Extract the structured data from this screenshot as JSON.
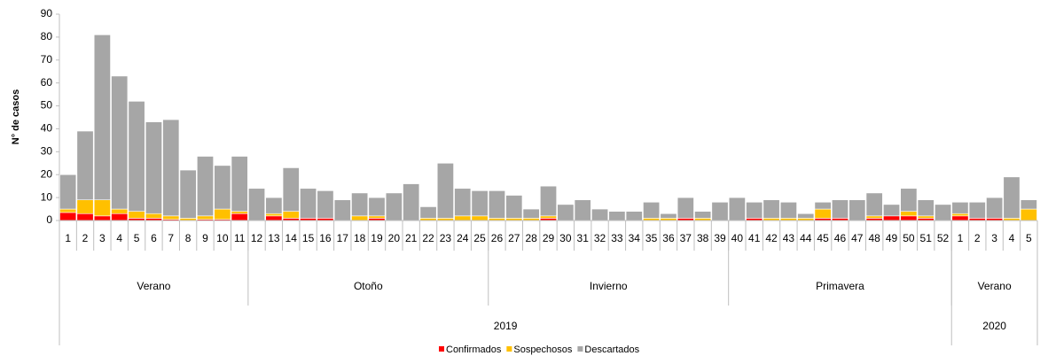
{
  "chart_data": {
    "type": "stacked_bar",
    "y_label": "N° de casos",
    "categories": [
      "1",
      "2",
      "3",
      "4",
      "5",
      "6",
      "7",
      "8",
      "9",
      "10",
      "11",
      "12",
      "13",
      "14",
      "15",
      "16",
      "17",
      "18",
      "19",
      "20",
      "21",
      "22",
      "23",
      "24",
      "25",
      "26",
      "27",
      "28",
      "29",
      "30",
      "31",
      "32",
      "33",
      "34",
      "35",
      "36",
      "37",
      "38",
      "39",
      "40",
      "41",
      "42",
      "43",
      "44",
      "45",
      "46",
      "47",
      "48",
      "49",
      "50",
      "51",
      "52",
      "1",
      "2",
      "3",
      "4",
      "5"
    ],
    "season_groups": [
      {
        "label": "Verano",
        "span": 11
      },
      {
        "label": "Otoño",
        "span": 14
      },
      {
        "label": "Invierno",
        "span": 14
      },
      {
        "label": "Primavera",
        "span": 13
      },
      {
        "label": "Verano",
        "span": 5
      }
    ],
    "year_groups": [
      {
        "label": "2019",
        "span": 52
      },
      {
        "label": "2020",
        "span": 5
      }
    ],
    "series": [
      {
        "name": "Confirmados",
        "color": "#ff0000",
        "values": [
          3.5,
          3,
          2,
          3,
          1,
          1,
          0.5,
          0,
          0.5,
          0.5,
          3,
          0,
          2,
          1,
          1,
          1,
          0,
          0,
          1,
          0,
          0,
          0,
          0,
          0,
          0,
          0,
          0,
          0,
          1,
          0,
          0,
          0,
          0,
          0,
          0,
          0,
          1,
          0,
          0,
          0,
          1,
          0,
          0,
          0,
          1,
          1,
          0,
          1,
          2,
          2,
          1,
          0,
          2,
          1,
          1,
          0,
          0
        ]
      },
      {
        "name": "Sospechosos",
        "color": "#ffc000",
        "values": [
          1.5,
          6,
          7,
          2,
          3,
          2,
          1.5,
          1,
          1.5,
          4.5,
          1,
          0,
          1,
          3,
          0,
          0,
          0,
          2,
          1,
          0,
          0,
          1,
          1,
          2,
          2,
          1,
          1,
          1,
          1,
          0,
          0,
          0,
          0,
          0,
          1,
          1,
          0,
          1,
          0,
          0,
          0,
          1,
          1,
          1,
          4,
          0,
          0,
          1,
          0,
          2,
          1,
          0,
          1,
          0,
          0,
          1,
          5
        ]
      },
      {
        "name": "Descartados",
        "color": "#a6a6a6",
        "values": [
          15,
          30,
          72,
          58,
          48,
          40,
          42,
          21,
          26,
          19,
          24,
          14,
          7,
          19,
          13,
          12,
          9,
          10,
          8,
          12,
          16,
          5,
          24,
          12,
          11,
          12,
          10,
          4,
          13,
          7,
          9,
          5,
          4,
          4,
          7,
          2,
          9,
          3,
          8,
          10,
          7,
          8,
          7,
          2,
          3,
          8,
          9,
          10,
          5,
          10,
          7,
          7,
          5,
          7,
          9,
          18,
          4
        ]
      }
    ],
    "ylim": [
      0,
      90
    ],
    "yticks": [
      0,
      10,
      20,
      30,
      40,
      50,
      60,
      70,
      80,
      90
    ]
  }
}
